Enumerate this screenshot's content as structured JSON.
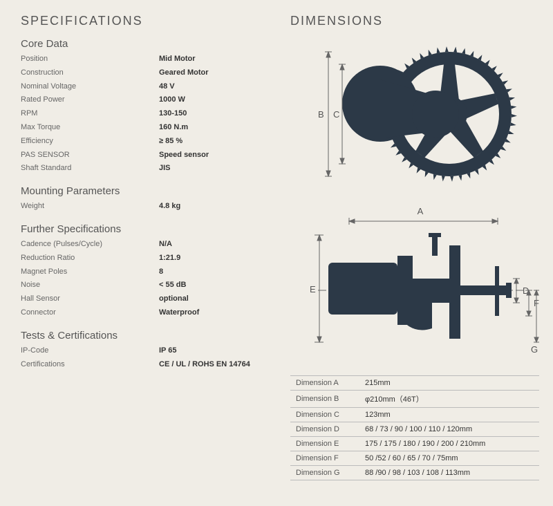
{
  "headings": {
    "specifications": "SPECIFICATIONS",
    "dimensions": "DIMENSIONS",
    "core_data": "Core Data",
    "mounting": "Mounting Parameters",
    "further": "Further Specifications",
    "tests": "Tests & Certifications"
  },
  "core_data": {
    "position_label": "Position",
    "position_value": "Mid Motor",
    "construction_label": "Construction",
    "construction_value": "Geared Motor",
    "voltage_label": "Nominal Voltage",
    "voltage_value": "48 V",
    "power_label": "Rated Power",
    "power_value": "1000 W",
    "rpm_label": "RPM",
    "rpm_value": "130-150",
    "torque_label": "Max Torque",
    "torque_value": "160 N.m",
    "efficiency_label": "Efficiency",
    "efficiency_value": "≥ 85 %",
    "pas_label": "PAS SENSOR",
    "pas_value": "Speed sensor",
    "shaft_label": "Shaft Standard",
    "shaft_value": "JIS"
  },
  "mounting": {
    "weight_label": "Weight",
    "weight_value": "4.8 kg"
  },
  "further": {
    "cadence_label": "Cadence (Pulses/Cycle)",
    "cadence_value": "N/A",
    "ratio_label": "Reduction Ratio",
    "ratio_value": "1:21.9",
    "poles_label": "Magnet Poles",
    "poles_value": "8",
    "noise_label": "Noise",
    "noise_value": "< 55 dB",
    "hall_label": "Hall Sensor",
    "hall_value": "optional",
    "connector_label": "Connector",
    "connector_value": "Waterproof"
  },
  "tests": {
    "ip_label": "IP-Code",
    "ip_value": "IP 65",
    "cert_label": "Certifications",
    "cert_value": "CE / UL / ROHS EN 14764"
  },
  "dim_table": {
    "a_label": "Dimension A",
    "a_value": "215mm",
    "b_label": "Dimension B",
    "b_value": "φ210mm（46T）",
    "c_label": "Dimension C",
    "c_value": "123mm",
    "d_label": "Dimension D",
    "d_value": "68 / 73 / 90 / 100 / 110 / 120mm",
    "e_label": "Dimension E",
    "e_value": "175 / 175 / 180 / 190 / 200 / 210mm",
    "f_label": "Dimension F",
    "f_value": "50 /52 / 60 / 65 / 70 / 75mm",
    "g_label": "Dimension G",
    "g_value": "88 /90 / 98 / 103 / 108 / 113mm"
  },
  "diagram": {
    "labels": {
      "A": "A",
      "B": "B",
      "C": "C",
      "D": "D",
      "E": "E",
      "F": "F",
      "G": "G"
    },
    "colors": {
      "shape_fill": "#2c3947",
      "shape_stroke": "#2c3947",
      "dim_line": "#666666",
      "background": "#f0ede6",
      "hole_fill": "#e8e4db"
    }
  }
}
